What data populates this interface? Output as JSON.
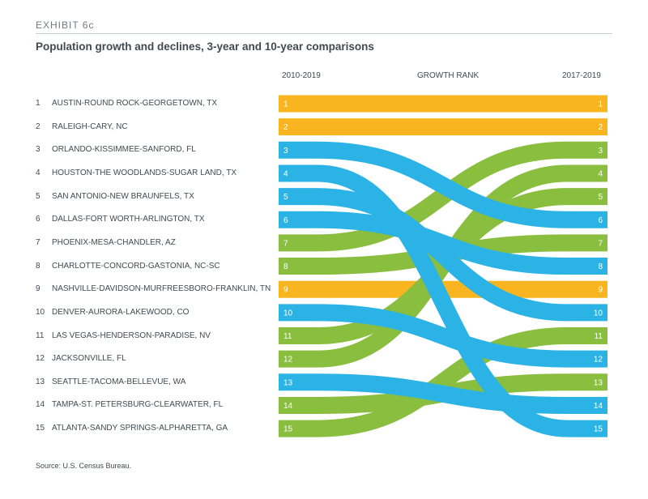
{
  "header": {
    "exhibit": "EXHIBIT 6c",
    "title": "Population growth and declines, 3-year and 10-year comparisons"
  },
  "source": "Source: U.S. Census Bureau.",
  "colors": {
    "growth": "#8abe3f",
    "decline": "#2cb3e6",
    "unchanged": "#f9b51f",
    "ink": "#3f4a52"
  },
  "chart_data": {
    "type": "slope-rank",
    "left_header": "2010-2019",
    "center_header": "GROWTH RANK",
    "right_header": "2017-2019",
    "metros": [
      {
        "rank": "1",
        "name": "AUSTIN-ROUND ROCK-GEORGETOWN, TX",
        "rank_2010_2019": 1,
        "rank_2017_2019": 1,
        "status": "unchanged"
      },
      {
        "rank": "2",
        "name": "RALEIGH-CARY, NC",
        "rank_2010_2019": 2,
        "rank_2017_2019": 2,
        "status": "unchanged"
      },
      {
        "rank": "3",
        "name": "ORLANDO-KISSIMMEE-SANFORD, FL",
        "rank_2010_2019": 3,
        "rank_2017_2019": 6,
        "status": "decline"
      },
      {
        "rank": "4",
        "name": "HOUSTON-THE WOODLANDS-SUGAR LAND, TX",
        "rank_2010_2019": 4,
        "rank_2017_2019": 15,
        "status": "decline"
      },
      {
        "rank": "5",
        "name": "SAN ANTONIO-NEW BRAUNFELS, TX",
        "rank_2010_2019": 5,
        "rank_2017_2019": 10,
        "status": "decline"
      },
      {
        "rank": "6",
        "name": "DALLAS-FORT WORTH-ARLINGTON, TX",
        "rank_2010_2019": 6,
        "rank_2017_2019": 8,
        "status": "decline"
      },
      {
        "rank": "7",
        "name": "PHOENIX-MESA-CHANDLER, AZ",
        "rank_2010_2019": 7,
        "rank_2017_2019": 3,
        "status": "growth"
      },
      {
        "rank": "8",
        "name": "CHARLOTTE-CONCORD-GASTONIA, NC-SC",
        "rank_2010_2019": 8,
        "rank_2017_2019": 7,
        "status": "growth"
      },
      {
        "rank": "9",
        "name": "NASHVILLE-DAVIDSON-MURFREESBORO-FRANKLIN, TN",
        "rank_2010_2019": 9,
        "rank_2017_2019": 9,
        "status": "unchanged"
      },
      {
        "rank": "10",
        "name": "DENVER-AURORA-LAKEWOOD, CO",
        "rank_2010_2019": 10,
        "rank_2017_2019": 12,
        "status": "decline"
      },
      {
        "rank": "11",
        "name": "LAS VEGAS-HENDERSON-PARADISE, NV",
        "rank_2010_2019": 11,
        "rank_2017_2019": 5,
        "status": "growth"
      },
      {
        "rank": "12",
        "name": "JACKSONVILLE, FL",
        "rank_2010_2019": 12,
        "rank_2017_2019": 4,
        "status": "growth"
      },
      {
        "rank": "13",
        "name": "SEATTLE-TACOMA-BELLEVUE, WA",
        "rank_2010_2019": 13,
        "rank_2017_2019": 14,
        "status": "decline"
      },
      {
        "rank": "14",
        "name": "TAMPA-ST. PETERSBURG-CLEARWATER, FL",
        "rank_2010_2019": 14,
        "rank_2017_2019": 13,
        "status": "growth"
      },
      {
        "rank": "15",
        "name": "ATLANTA-SANDY SPRINGS-ALPHARETTA, GA",
        "rank_2010_2019": 15,
        "rank_2017_2019": 11,
        "status": "growth"
      }
    ]
  }
}
